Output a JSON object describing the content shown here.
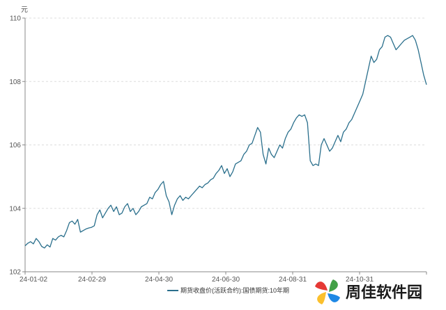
{
  "chart_data": {
    "type": "line",
    "y_unit": "元",
    "ylim": [
      102,
      110
    ],
    "y_ticks": [
      102,
      104,
      106,
      108,
      110
    ],
    "x_tick_labels": [
      "24-01-02",
      "24-02-29",
      "24-04-30",
      "24-06-30",
      "24-08-31",
      "24-10-31"
    ],
    "grid": "horizontal-dashed",
    "legend_position": "bottom-center",
    "series": [
      {
        "name": "期货收盘价(活跃合约):国债期货:10年期",
        "color": "#2a6f8c",
        "points": [
          [
            0,
            102.82
          ],
          [
            1,
            102.9
          ],
          [
            2,
            102.95
          ],
          [
            3,
            102.88
          ],
          [
            4,
            103.05
          ],
          [
            5,
            102.95
          ],
          [
            6,
            102.8
          ],
          [
            7,
            102.75
          ],
          [
            8,
            102.85
          ],
          [
            9,
            102.78
          ],
          [
            10,
            103.05
          ],
          [
            11,
            103.0
          ],
          [
            12,
            103.1
          ],
          [
            13,
            103.15
          ],
          [
            14,
            103.1
          ],
          [
            15,
            103.3
          ],
          [
            16,
            103.55
          ],
          [
            17,
            103.6
          ],
          [
            18,
            103.5
          ],
          [
            19,
            103.65
          ],
          [
            20,
            103.25
          ],
          [
            21,
            103.3
          ],
          [
            22,
            103.35
          ],
          [
            23,
            103.38
          ],
          [
            24,
            103.4
          ],
          [
            25,
            103.45
          ],
          [
            26,
            103.8
          ],
          [
            27,
            103.95
          ],
          [
            28,
            103.7
          ],
          [
            29,
            103.85
          ],
          [
            30,
            104.0
          ],
          [
            31,
            104.1
          ],
          [
            32,
            103.9
          ],
          [
            33,
            104.05
          ],
          [
            34,
            103.8
          ],
          [
            35,
            103.85
          ],
          [
            36,
            104.05
          ],
          [
            37,
            104.15
          ],
          [
            38,
            103.9
          ],
          [
            39,
            104.0
          ],
          [
            40,
            103.8
          ],
          [
            41,
            103.9
          ],
          [
            42,
            104.05
          ],
          [
            43,
            104.1
          ],
          [
            44,
            104.15
          ],
          [
            45,
            104.35
          ],
          [
            46,
            104.3
          ],
          [
            47,
            104.5
          ],
          [
            48,
            104.6
          ],
          [
            49,
            104.75
          ],
          [
            50,
            104.85
          ],
          [
            51,
            104.4
          ],
          [
            52,
            104.2
          ],
          [
            53,
            103.8
          ],
          [
            54,
            104.1
          ],
          [
            55,
            104.3
          ],
          [
            56,
            104.4
          ],
          [
            57,
            104.25
          ],
          [
            58,
            104.35
          ],
          [
            59,
            104.3
          ],
          [
            60,
            104.4
          ],
          [
            61,
            104.5
          ],
          [
            62,
            104.6
          ],
          [
            63,
            104.7
          ],
          [
            64,
            104.65
          ],
          [
            65,
            104.75
          ],
          [
            66,
            104.8
          ],
          [
            67,
            104.9
          ],
          [
            68,
            104.95
          ],
          [
            69,
            105.1
          ],
          [
            70,
            105.2
          ],
          [
            71,
            105.35
          ],
          [
            72,
            105.1
          ],
          [
            73,
            105.25
          ],
          [
            74,
            105.0
          ],
          [
            75,
            105.15
          ],
          [
            76,
            105.4
          ],
          [
            77,
            105.45
          ],
          [
            78,
            105.5
          ],
          [
            79,
            105.7
          ],
          [
            80,
            105.8
          ],
          [
            81,
            106.0
          ],
          [
            82,
            106.05
          ],
          [
            83,
            106.3
          ],
          [
            84,
            106.55
          ],
          [
            85,
            106.4
          ],
          [
            86,
            105.7
          ],
          [
            87,
            105.4
          ],
          [
            88,
            105.9
          ],
          [
            89,
            105.7
          ],
          [
            90,
            105.6
          ],
          [
            91,
            105.8
          ],
          [
            92,
            106.0
          ],
          [
            93,
            105.9
          ],
          [
            94,
            106.2
          ],
          [
            95,
            106.4
          ],
          [
            96,
            106.5
          ],
          [
            97,
            106.7
          ],
          [
            98,
            106.85
          ],
          [
            99,
            106.95
          ],
          [
            100,
            106.9
          ],
          [
            101,
            106.95
          ],
          [
            102,
            106.7
          ],
          [
            103,
            105.5
          ],
          [
            104,
            105.35
          ],
          [
            105,
            105.4
          ],
          [
            106,
            105.35
          ],
          [
            107,
            106.0
          ],
          [
            108,
            106.2
          ],
          [
            109,
            106.0
          ],
          [
            110,
            105.8
          ],
          [
            111,
            105.9
          ],
          [
            112,
            106.1
          ],
          [
            113,
            106.3
          ],
          [
            114,
            106.1
          ],
          [
            115,
            106.4
          ],
          [
            116,
            106.5
          ],
          [
            117,
            106.7
          ],
          [
            118,
            106.8
          ],
          [
            119,
            107.0
          ],
          [
            120,
            107.2
          ],
          [
            121,
            107.4
          ],
          [
            122,
            107.6
          ],
          [
            123,
            108.0
          ],
          [
            124,
            108.4
          ],
          [
            125,
            108.8
          ],
          [
            126,
            108.6
          ],
          [
            127,
            108.7
          ],
          [
            128,
            109.0
          ],
          [
            129,
            109.1
          ],
          [
            130,
            109.4
          ],
          [
            131,
            109.45
          ],
          [
            132,
            109.4
          ],
          [
            133,
            109.2
          ],
          [
            134,
            109.0
          ],
          [
            135,
            109.1
          ],
          [
            136,
            109.2
          ],
          [
            137,
            109.3
          ],
          [
            138,
            109.35
          ],
          [
            139,
            109.4
          ],
          [
            140,
            109.45
          ],
          [
            141,
            109.3
          ],
          [
            142,
            109.0
          ],
          [
            143,
            108.6
          ],
          [
            144,
            108.2
          ],
          [
            145,
            107.9
          ]
        ]
      }
    ]
  },
  "watermark": {
    "text": "周佳软件园",
    "logo_colors": [
      "#e53935",
      "#43a047",
      "#fbc02d",
      "#1e88e5"
    ]
  }
}
